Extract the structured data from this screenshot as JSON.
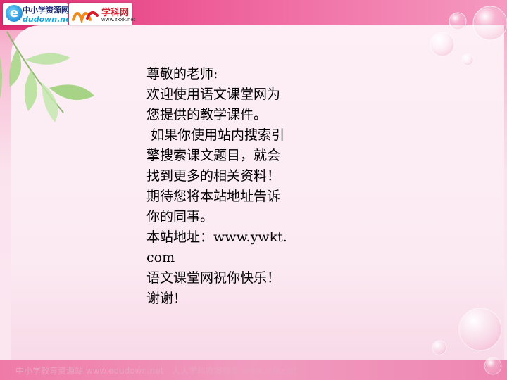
{
  "header": {
    "logo1": {
      "icon": "e-globe-icon",
      "title": "中小学资源网",
      "subtitle": "dudown.net"
    },
    "logo2": {
      "icon": "xueke-mark-icon",
      "title": "学科网",
      "subtitle": "www.zxxk.net"
    }
  },
  "content": {
    "lines": [
      "尊敬的老师:",
      "欢迎使用语文课堂网为",
      "您提供的教学课件。",
      " 如果你使用站内搜索引",
      "擎搜索课文题目，就会",
      "找到更多的相关资料！",
      "期待您将本站地址告诉",
      "你的同事。",
      "本站地址：www.ywkt.",
      "com",
      "语文课堂网祝你快乐！",
      "谢谢！"
    ]
  },
  "footer": {
    "left": "中小学教育资源站 www.edudown.net",
    "right": "人人学科教案搜索 www.rxlk.net"
  },
  "colors": {
    "band": "#e02d72",
    "panel": "#fdeff5",
    "leaf": "#9ed17a",
    "text": "#000000"
  }
}
